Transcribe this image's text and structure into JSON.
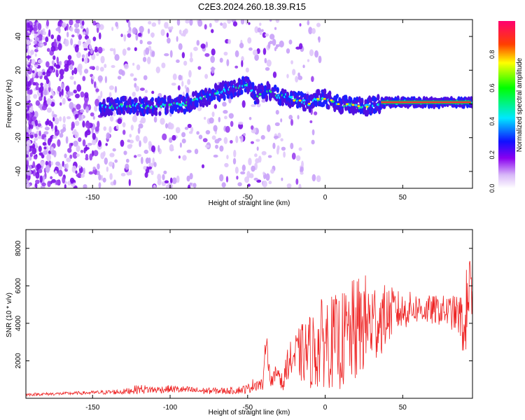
{
  "title": "C2E3.2024.260.18.39.R15",
  "colors": {
    "snr_line": "#ee2222",
    "axis": "#000000"
  },
  "chart_data": [
    {
      "type": "heatmap",
      "xlabel": "Height of straight line (km)",
      "ylabel": "Frequency (Hz)",
      "xlim": [
        -193,
        95
      ],
      "ylim": [
        -50,
        50
      ],
      "xticks": [
        -150,
        -100,
        -50,
        0,
        50
      ],
      "yticks": [
        -40,
        -20,
        0,
        20,
        40
      ],
      "colorbar": {
        "label": "Normalized spectral amplitude",
        "range": [
          0,
          1
        ],
        "ticks": [
          "0.0",
          "0.2",
          "0.4",
          "0.6",
          "0.8"
        ]
      },
      "ridge_frequency_profile": {
        "x": [
          -145,
          -130,
          -120,
          -110,
          -100,
          -90,
          -80,
          -70,
          -60,
          -50,
          -45,
          -40,
          -35,
          -30,
          -25,
          -20,
          -15,
          -10,
          -5,
          0,
          5,
          10,
          15,
          20,
          25,
          30,
          35,
          40,
          50,
          60,
          70,
          80,
          95
        ],
        "freq": [
          -2,
          -1,
          -1,
          -2,
          0,
          0,
          3,
          7,
          9,
          12,
          5,
          7,
          8,
          4,
          5,
          2,
          2,
          0,
          3,
          3,
          2,
          -1,
          0,
          -1,
          -2,
          -1,
          0,
          1,
          1,
          1,
          1,
          1,
          1
        ]
      }
    },
    {
      "type": "line",
      "xlabel": "Height of straight line (km)",
      "ylabel": "SNR (10 * v/v)",
      "xlim": [
        -193,
        95
      ],
      "ylim": [
        0,
        9000
      ],
      "xticks": [
        -150,
        -100,
        -50,
        0,
        50
      ],
      "yticks": [
        2000,
        4000,
        6000,
        8000
      ],
      "series": [
        {
          "x": [
            -193,
            -170,
            -150,
            -130,
            -120,
            -110,
            -100,
            -90,
            -80,
            -70,
            -60,
            -50,
            -45,
            -40,
            -38,
            -36,
            -34,
            -30,
            -27,
            -25,
            -20,
            -15,
            -10,
            -5,
            0,
            5,
            10,
            15,
            20,
            25,
            30,
            35,
            40,
            45,
            50,
            55,
            60,
            65,
            70,
            75,
            80,
            85,
            88,
            90,
            92,
            95
          ],
          "y": [
            200,
            250,
            300,
            350,
            500,
            450,
            500,
            450,
            400,
            400,
            400,
            500,
            800,
            700,
            3500,
            1300,
            900,
            1500,
            600,
            1800,
            2200,
            2400,
            2500,
            2600,
            3200,
            3000,
            3000,
            3300,
            3600,
            4000,
            4000,
            4200,
            4400,
            4700,
            4600,
            4800,
            4800,
            4700,
            4700,
            4700,
            4600,
            4500,
            4200,
            3000,
            6500,
            4500
          ],
          "noise_envelope": [
            80,
            80,
            100,
            150,
            250,
            200,
            200,
            200,
            180,
            180,
            180,
            250,
            400,
            300,
            600,
            500,
            400,
            700,
            300,
            800,
            1200,
            1600,
            2000,
            2200,
            2600,
            2500,
            2600,
            2800,
            2900,
            2700,
            2500,
            2000,
            1600,
            1200,
            1000,
            900,
            800,
            800,
            800,
            800,
            900,
            1000,
            1400,
            1600,
            2500,
            1500
          ]
        }
      ]
    }
  ]
}
